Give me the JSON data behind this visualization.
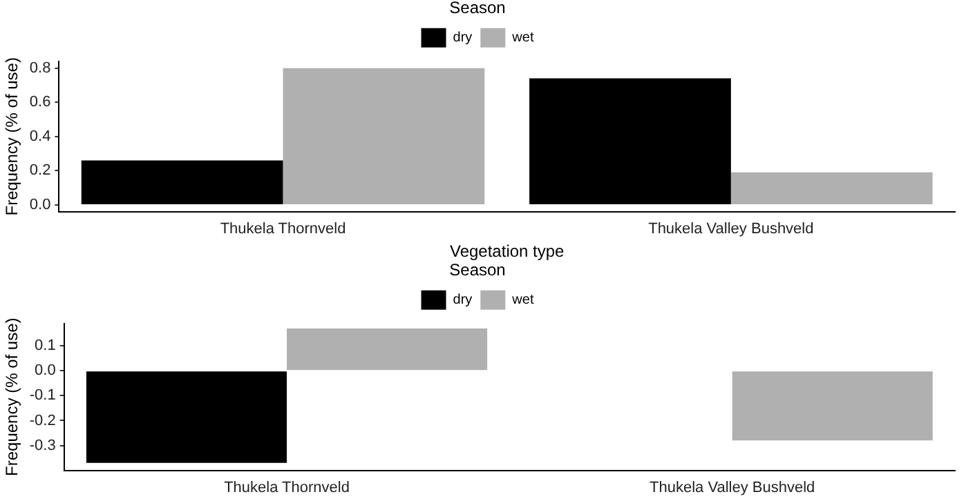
{
  "chart_data": [
    {
      "type": "bar",
      "categories": [
        "Thukela Thornveld",
        "Thukela Valley Bushveld"
      ],
      "xlabel": "Vegetation type",
      "ylabel": "Frequency (% of use)",
      "legend_title": "Season",
      "legend": "top",
      "grid": false,
      "ylim": [
        -0.04,
        0.84
      ],
      "yticks": [
        {
          "value": 0,
          "label": "0.0"
        },
        {
          "value": 0.2,
          "label": "0.2"
        },
        {
          "value": 0.4,
          "label": "0.4"
        },
        {
          "value": 0.6,
          "label": "0.6"
        },
        {
          "value": 0.8,
          "label": "0.8"
        }
      ],
      "series": [
        {
          "name": "dry",
          "color": "#000000",
          "values": [
            0.26,
            0.74
          ]
        },
        {
          "name": "wet",
          "color": "#b0b0b0",
          "values": [
            0.8,
            0.19
          ]
        }
      ]
    },
    {
      "type": "bar",
      "categories": [
        "Thukela Thornveld",
        "Thukela Valley Bushveld"
      ],
      "ylabel": "Frequency (% of use)",
      "legend_title": "Season",
      "legend": "top",
      "grid": false,
      "ylim": [
        -0.4,
        0.19
      ],
      "yticks": [
        {
          "value": -0.3,
          "label": "-0.3"
        },
        {
          "value": -0.2,
          "label": "-0.2"
        },
        {
          "value": -0.1,
          "label": "-0.1"
        },
        {
          "value": 0,
          "label": "0.0"
        },
        {
          "value": 0.1,
          "label": "0.1"
        }
      ],
      "series": [
        {
          "name": "dry",
          "color": "#000000",
          "values": [
            -0.37,
            0
          ]
        },
        {
          "name": "wet",
          "color": "#b0b0b0",
          "values": [
            0.17,
            -0.28
          ]
        }
      ]
    }
  ]
}
